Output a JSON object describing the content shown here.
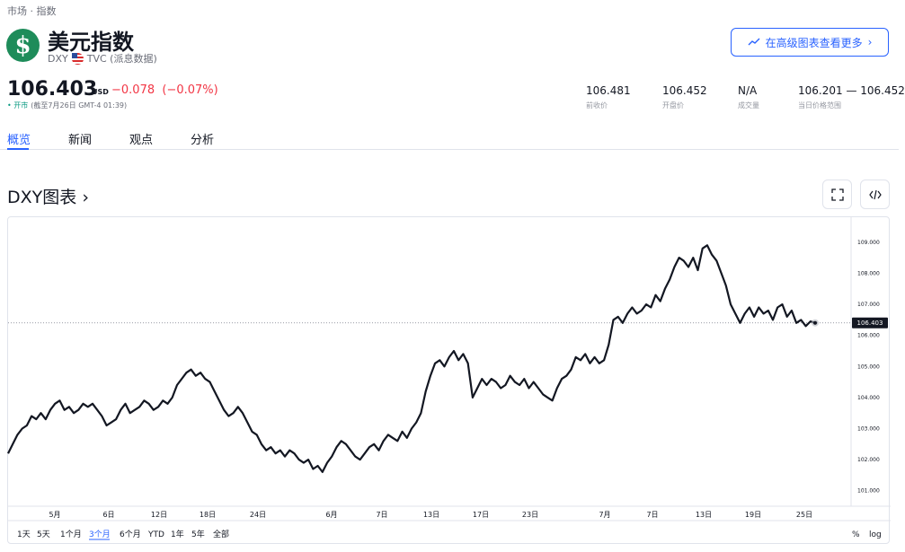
{
  "breadcrumb": "市场 · 指数",
  "header": {
    "logo_symbol": "$",
    "title": "美元指数",
    "ticker": "DXY",
    "exchange": "TVC (派息数据)",
    "advanced_button": "在高级图表查看更多"
  },
  "quote": {
    "price": "106.403",
    "unit": "USD",
    "change": "−0.078",
    "change_pct": "(−0.07%)",
    "market_status": "• 开市",
    "as_of": "(截至7月26日 GMT-4 01:39)"
  },
  "stats": [
    {
      "value": "106.481",
      "label": "前收价"
    },
    {
      "value": "106.452",
      "label": "开盘价"
    },
    {
      "value": "N/A",
      "label": "成交量"
    },
    {
      "value": "106.201 — 106.452",
      "label": "当日价格范围"
    }
  ],
  "tabs": [
    "概览",
    "新闻",
    "观点",
    "分析"
  ],
  "chart_section": {
    "title": "DXY图表",
    "chevron": "›",
    "fullscreen_icon": "fullscreen-icon",
    "embed_icon": "code-icon"
  },
  "colors": {
    "accent": "#2962ff",
    "negative": "#f23645",
    "positive": "#089981",
    "line": "#131722",
    "logo_bg": "#1e8c5a"
  },
  "range_buttons": [
    "1天",
    "5天",
    "1个月",
    "3个月",
    "6个月",
    "YTD",
    "1年",
    "5年",
    "全部"
  ],
  "range_active": "3个月",
  "scale_buttons": [
    "%",
    "log"
  ],
  "chart_data": {
    "type": "line",
    "series": [
      {
        "values": [
          102.2,
          102.5,
          102.8,
          103.0,
          103.1,
          103.4,
          103.3,
          103.5,
          103.3,
          103.6,
          103.8,
          103.9,
          103.6,
          103.7,
          103.5,
          103.6,
          103.8,
          103.7,
          103.8,
          103.6,
          103.4,
          103.1,
          103.2,
          103.3,
          103.6,
          103.8,
          103.5,
          103.6,
          103.7,
          103.9,
          103.8,
          103.6,
          103.7,
          103.9,
          103.8,
          104.0,
          104.4,
          104.6,
          104.8,
          104.9,
          104.7,
          104.8,
          104.6,
          104.5,
          104.2,
          103.9,
          103.6,
          103.4,
          103.5,
          103.7,
          103.5,
          103.2,
          102.9,
          102.8,
          102.5,
          102.3,
          102.4,
          102.2,
          102.3,
          102.1,
          102.3,
          102.2,
          102.0,
          101.9,
          102.0,
          101.7,
          101.8,
          101.6,
          101.9,
          102.1,
          102.4,
          102.6,
          102.5,
          102.3,
          102.1,
          102.0,
          102.2,
          102.4,
          102.5,
          102.3,
          102.6,
          102.8,
          102.7,
          102.6,
          102.9,
          102.7,
          103.0,
          103.2,
          103.5,
          104.2,
          104.7,
          105.1,
          105.2,
          105.0,
          105.3,
          105.5,
          105.2,
          105.4,
          105.1,
          104.0,
          104.3,
          104.6,
          104.4,
          104.6,
          104.5,
          104.3,
          104.4,
          104.7,
          104.5,
          104.4,
          104.6,
          104.3,
          104.5,
          104.3,
          104.1,
          104.0,
          103.9,
          104.3,
          104.6,
          104.7,
          104.9,
          105.3,
          105.2,
          105.4,
          105.1,
          105.3,
          105.1,
          105.2,
          105.7,
          106.5,
          106.6,
          106.4,
          106.7,
          106.9,
          106.7,
          106.8,
          107.0,
          106.9,
          107.3,
          107.1,
          107.5,
          107.8,
          108.2,
          108.5,
          108.4,
          108.2,
          108.5,
          108.1,
          108.8,
          108.9,
          108.6,
          108.4,
          108.0,
          107.6,
          107.0,
          106.7,
          106.4,
          106.7,
          106.9,
          106.6,
          106.9,
          106.7,
          106.8,
          106.5,
          106.9,
          107.0,
          106.6,
          106.8,
          106.4,
          106.5,
          106.3,
          106.45,
          106.403
        ]
      }
    ],
    "x_ticks": [
      "5月",
      "6日",
      "12日",
      "18日",
      "24日",
      "6月",
      "7日",
      "13日",
      "17日",
      "23日",
      "7月",
      "7日",
      "13日",
      "19日",
      "25日"
    ],
    "y_ticks": [
      101,
      102,
      103,
      104,
      105,
      106,
      107,
      108,
      109
    ],
    "y_tick_labels": [
      "101.000",
      "102.000",
      "103.000",
      "104.000",
      "105.000",
      "106.000",
      "107.000",
      "108.000",
      "109.000"
    ],
    "ylim": [
      100.5,
      109.4
    ],
    "last_value_label": "106.403",
    "last_value": 106.403,
    "grid": false
  }
}
